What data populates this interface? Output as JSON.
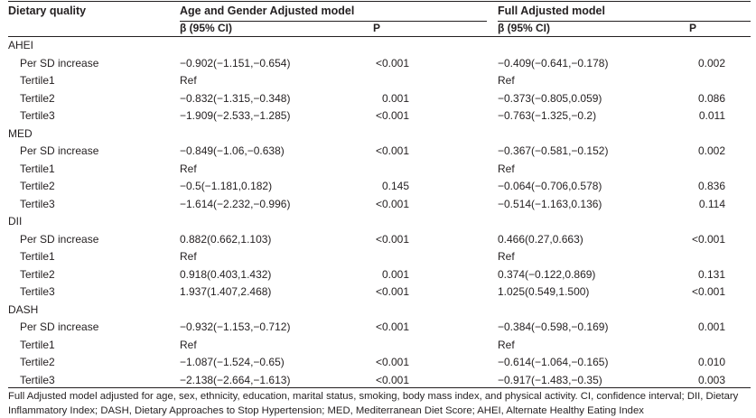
{
  "header": {
    "col_label": "Dietary quality",
    "model1": "Age and Gender Adjusted model",
    "model2": "Full Adjusted model",
    "beta": "β (95% CI)",
    "p": "P"
  },
  "rows": [
    {
      "label": "AHEI",
      "group": true
    },
    {
      "label": "Per SD increase",
      "b1": "−0.902(−1.151,−0.654)",
      "p1": "<0.001",
      "b2": "−0.409(−0.641,−0.178)",
      "p2": "0.002"
    },
    {
      "label": "Tertile1",
      "b1": "Ref",
      "p1": "",
      "b2": "Ref",
      "p2": ""
    },
    {
      "label": "Tertile2",
      "b1": "−0.832(−1.315,−0.348)",
      "p1": "0.001",
      "b2": "−0.373(−0.805,0.059)",
      "p2": "0.086"
    },
    {
      "label": "Tertile3",
      "b1": "−1.909(−2.533,−1.285)",
      "p1": "<0.001",
      "b2": "−0.763(−1.325,−0.2)",
      "p2": "0.011"
    },
    {
      "label": "MED",
      "group": true
    },
    {
      "label": "Per SD increase",
      "b1": "−0.849(−1.06,−0.638)",
      "p1": "<0.001",
      "b2": "−0.367(−0.581,−0.152)",
      "p2": "0.002"
    },
    {
      "label": "Tertile1",
      "b1": "Ref",
      "p1": "",
      "b2": "Ref",
      "p2": ""
    },
    {
      "label": "Tertile2",
      "b1": "−0.5(−1.181,0.182)",
      "p1": "0.145",
      "b2": "−0.064(−0.706,0.578)",
      "p2": "0.836"
    },
    {
      "label": "Tertile3",
      "b1": "−1.614(−2.232,−0.996)",
      "p1": "<0.001",
      "b2": "−0.514(−1.163,0.136)",
      "p2": "0.114"
    },
    {
      "label": "DII",
      "group": true
    },
    {
      "label": "Per SD increase",
      "b1": "0.882(0.662,1.103)",
      "p1": "<0.001",
      "b2": "0.466(0.27,0.663)",
      "p2": "<0.001"
    },
    {
      "label": "Tertile1",
      "b1": "Ref",
      "p1": "",
      "b2": "Ref",
      "p2": ""
    },
    {
      "label": "Tertile2",
      "b1": "0.918(0.403,1.432)",
      "p1": "0.001",
      "b2": "0.374(−0.122,0.869)",
      "p2": "0.131"
    },
    {
      "label": "Tertile3",
      "b1": "1.937(1.407,2.468)",
      "p1": "<0.001",
      "b2": "1.025(0.549,1.500)",
      "p2": "<0.001"
    },
    {
      "label": "DASH",
      "group": true
    },
    {
      "label": "Per SD increase",
      "b1": "−0.932(−1.153,−0.712)",
      "p1": "<0.001",
      "b2": "−0.384(−0.598,−0.169)",
      "p2": "0.001"
    },
    {
      "label": "Tertile1",
      "b1": "Ref",
      "p1": "",
      "b2": "Ref",
      "p2": ""
    },
    {
      "label": "Tertile2",
      "b1": "−1.087(−1.524,−0.65)",
      "p1": "<0.001",
      "b2": "−0.614(−1.064,−0.165)",
      "p2": "0.010"
    },
    {
      "label": "Tertile3",
      "b1": "−2.138(−2.664,−1.613)",
      "p1": "<0.001",
      "b2": "−0.917(−1.483,−0.35)",
      "p2": "0.003"
    }
  ],
  "footnote": "Full Adjusted model adjusted for age, sex, ethnicity, education, marital status, smoking, body mass index, and physical activity. CI, confidence interval; DII, Dietary Inflammatory Index; DASH, Dietary Approaches to Stop Hypertension; MED, Mediterranean Diet Score; AHEI, Alternate Healthy Eating Index"
}
